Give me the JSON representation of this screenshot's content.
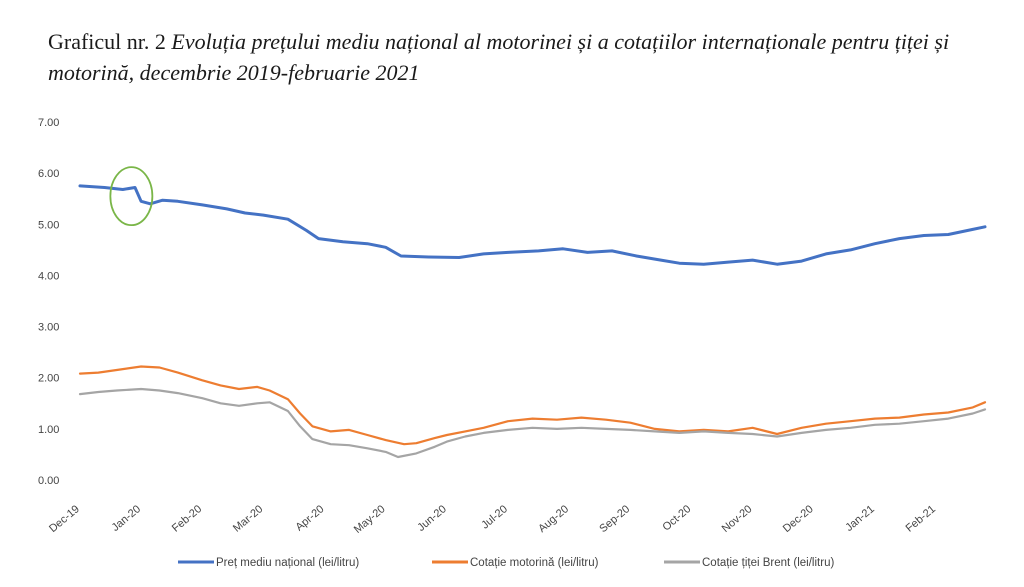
{
  "title": {
    "lead": "Graficul nr. 2",
    "main": "Evoluția prețului mediu național al motorinei și a cotațiilor internaționale pentru țiței și motorină, decembrie 2019-februarie 2021"
  },
  "chart_data": {
    "type": "line",
    "ylim": [
      0,
      7
    ],
    "yticks": [
      "0.00",
      "1.00",
      "2.00",
      "3.00",
      "4.00",
      "5.00",
      "6.00",
      "7.00"
    ],
    "categories": [
      "Dec-19",
      "Jan-20",
      "Feb-20",
      "Mar-20",
      "Apr-20",
      "May-20",
      "Jun-20",
      "Jul-20",
      "Aug-20",
      "Sep-20",
      "Oct-20",
      "Nov-20",
      "Dec-20",
      "Jan-21",
      "Feb-21"
    ],
    "x_range": [
      0,
      14.8
    ],
    "grid": false,
    "legend_position": "bottom",
    "annotation": {
      "shape": "ellipse",
      "color": "#7ab648",
      "x": 0.84,
      "y": 5.55
    },
    "series": [
      {
        "name": "Preț mediu național (lei/litru)",
        "color": "#4472c4",
        "points": [
          [
            0,
            5.75
          ],
          [
            0.4,
            5.72
          ],
          [
            0.7,
            5.68
          ],
          [
            0.9,
            5.72
          ],
          [
            1.0,
            5.45
          ],
          [
            1.15,
            5.4
          ],
          [
            1.35,
            5.47
          ],
          [
            1.6,
            5.45
          ],
          [
            2.0,
            5.38
          ],
          [
            2.4,
            5.3
          ],
          [
            2.7,
            5.22
          ],
          [
            3.0,
            5.18
          ],
          [
            3.4,
            5.1
          ],
          [
            3.7,
            4.88
          ],
          [
            3.9,
            4.72
          ],
          [
            4.3,
            4.66
          ],
          [
            4.7,
            4.62
          ],
          [
            5.0,
            4.55
          ],
          [
            5.25,
            4.38
          ],
          [
            5.7,
            4.36
          ],
          [
            6.2,
            4.35
          ],
          [
            6.6,
            4.42
          ],
          [
            7.0,
            4.45
          ],
          [
            7.5,
            4.48
          ],
          [
            7.9,
            4.52
          ],
          [
            8.3,
            4.45
          ],
          [
            8.7,
            4.48
          ],
          [
            9.1,
            4.38
          ],
          [
            9.5,
            4.3
          ],
          [
            9.8,
            4.24
          ],
          [
            10.2,
            4.22
          ],
          [
            10.6,
            4.26
          ],
          [
            11.0,
            4.3
          ],
          [
            11.4,
            4.22
          ],
          [
            11.8,
            4.28
          ],
          [
            12.2,
            4.42
          ],
          [
            12.6,
            4.5
          ],
          [
            13.0,
            4.62
          ],
          [
            13.4,
            4.72
          ],
          [
            13.8,
            4.78
          ],
          [
            14.2,
            4.8
          ],
          [
            14.6,
            4.9
          ],
          [
            14.8,
            4.95
          ]
        ]
      },
      {
        "name": "Cotație motorină (lei/litru)",
        "color": "#ed7d31",
        "points": [
          [
            0,
            2.08
          ],
          [
            0.3,
            2.1
          ],
          [
            0.6,
            2.15
          ],
          [
            1.0,
            2.22
          ],
          [
            1.3,
            2.2
          ],
          [
            1.6,
            2.1
          ],
          [
            2.0,
            1.95
          ],
          [
            2.3,
            1.85
          ],
          [
            2.6,
            1.78
          ],
          [
            2.9,
            1.82
          ],
          [
            3.1,
            1.75
          ],
          [
            3.4,
            1.58
          ],
          [
            3.6,
            1.3
          ],
          [
            3.8,
            1.05
          ],
          [
            4.1,
            0.95
          ],
          [
            4.4,
            0.98
          ],
          [
            4.7,
            0.88
          ],
          [
            5.0,
            0.78
          ],
          [
            5.3,
            0.7
          ],
          [
            5.5,
            0.72
          ],
          [
            5.8,
            0.82
          ],
          [
            6.0,
            0.88
          ],
          [
            6.3,
            0.95
          ],
          [
            6.6,
            1.02
          ],
          [
            7.0,
            1.15
          ],
          [
            7.4,
            1.2
          ],
          [
            7.8,
            1.18
          ],
          [
            8.2,
            1.22
          ],
          [
            8.6,
            1.18
          ],
          [
            9.0,
            1.12
          ],
          [
            9.4,
            1.0
          ],
          [
            9.8,
            0.95
          ],
          [
            10.2,
            0.98
          ],
          [
            10.6,
            0.95
          ],
          [
            11.0,
            1.02
          ],
          [
            11.4,
            0.9
          ],
          [
            11.8,
            1.02
          ],
          [
            12.2,
            1.1
          ],
          [
            12.6,
            1.15
          ],
          [
            13.0,
            1.2
          ],
          [
            13.4,
            1.22
          ],
          [
            13.8,
            1.28
          ],
          [
            14.2,
            1.32
          ],
          [
            14.6,
            1.42
          ],
          [
            14.8,
            1.52
          ]
        ]
      },
      {
        "name": "Cotație țiței Brent (lei/litru)",
        "color": "#a5a5a5",
        "points": [
          [
            0,
            1.68
          ],
          [
            0.3,
            1.72
          ],
          [
            0.6,
            1.75
          ],
          [
            1.0,
            1.78
          ],
          [
            1.3,
            1.75
          ],
          [
            1.6,
            1.7
          ],
          [
            2.0,
            1.6
          ],
          [
            2.3,
            1.5
          ],
          [
            2.6,
            1.45
          ],
          [
            2.9,
            1.5
          ],
          [
            3.1,
            1.52
          ],
          [
            3.4,
            1.35
          ],
          [
            3.6,
            1.05
          ],
          [
            3.8,
            0.8
          ],
          [
            4.1,
            0.7
          ],
          [
            4.4,
            0.68
          ],
          [
            4.7,
            0.62
          ],
          [
            5.0,
            0.55
          ],
          [
            5.2,
            0.45
          ],
          [
            5.5,
            0.52
          ],
          [
            5.8,
            0.65
          ],
          [
            6.0,
            0.75
          ],
          [
            6.3,
            0.85
          ],
          [
            6.6,
            0.92
          ],
          [
            7.0,
            0.98
          ],
          [
            7.4,
            1.02
          ],
          [
            7.8,
            1.0
          ],
          [
            8.2,
            1.02
          ],
          [
            8.6,
            1.0
          ],
          [
            9.0,
            0.98
          ],
          [
            9.4,
            0.95
          ],
          [
            9.8,
            0.92
          ],
          [
            10.2,
            0.95
          ],
          [
            10.6,
            0.92
          ],
          [
            11.0,
            0.9
          ],
          [
            11.4,
            0.85
          ],
          [
            11.8,
            0.92
          ],
          [
            12.2,
            0.98
          ],
          [
            12.6,
            1.02
          ],
          [
            13.0,
            1.08
          ],
          [
            13.4,
            1.1
          ],
          [
            13.8,
            1.15
          ],
          [
            14.2,
            1.2
          ],
          [
            14.6,
            1.3
          ],
          [
            14.8,
            1.38
          ]
        ]
      }
    ]
  }
}
